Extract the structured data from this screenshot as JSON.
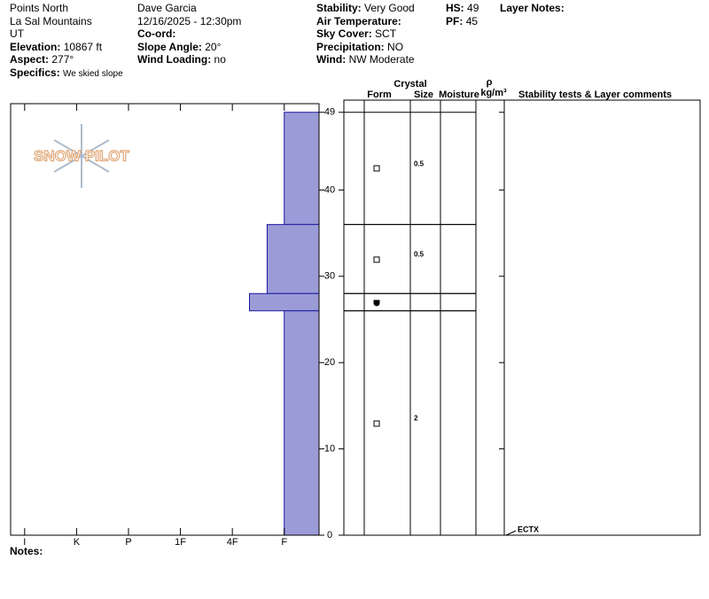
{
  "header": {
    "columns": [
      [
        {
          "value": "Points North"
        },
        {
          "value": "La Sal Mountains"
        },
        {
          "value": "UT"
        },
        {
          "label": "Elevation:",
          "value": "10867 ft"
        },
        {
          "label": "Aspect:",
          "value": "277°"
        },
        {
          "label": "Specifics:",
          "value": "We skied slope"
        }
      ],
      [
        {
          "value": "Dave Garcia"
        },
        {
          "value": "12/16/2025 - 12:30pm"
        },
        {
          "label": "Co-ord:"
        },
        {
          "label": "Slope Angle:",
          "value": "20°"
        },
        {
          "label": "Wind Loading:",
          "value": "no"
        }
      ],
      [
        {
          "label": "Stability:",
          "value": "Very Good"
        },
        {
          "label": "Air Temperature:"
        },
        {
          "label": "Sky Cover:",
          "value": "SCT"
        },
        {
          "label": "Precipitation:",
          "value": "NO"
        },
        {
          "label": "Wind:",
          "value": "NW Moderate"
        }
      ],
      [
        {
          "label": "HS:",
          "value": "49"
        },
        {
          "label": "PF:",
          "value": "45"
        }
      ],
      [
        {
          "label": "Layer Notes:"
        }
      ]
    ]
  },
  "logo": "SNOW PILOT",
  "notes_label": "Notes:",
  "columns": {
    "crystal": "Crystal",
    "form": "Form",
    "size": "Size",
    "moisture": "Moisture",
    "rho": "ρ",
    "density_unit": "kg/m³",
    "stability": "Stability tests & Layer comments"
  },
  "profile": {
    "ylim": [
      0,
      50
    ],
    "yticks": [
      0,
      10,
      20,
      30,
      40,
      49
    ],
    "xlim": [
      6.27,
      0.33
    ],
    "xticks": [
      {
        "value": 6,
        "label": "I"
      },
      {
        "value": 5,
        "label": "K"
      },
      {
        "value": 4,
        "label": "P"
      },
      {
        "value": 3,
        "label": "1F"
      },
      {
        "value": 2,
        "label": "4F"
      },
      {
        "value": 1,
        "label": "F"
      }
    ],
    "color": "#9b9bd8"
  },
  "layers": [
    {
      "top": 49,
      "bottom": 36,
      "hardness": 1,
      "size": 0.5
    },
    {
      "top": 36,
      "bottom": 28,
      "hardness": 1.33,
      "size": 0.5
    },
    {
      "top": 28,
      "bottom": 26,
      "hardness": 1.67
    },
    {
      "top": 26,
      "bottom": 0,
      "hardness": 1,
      "size": 2
    }
  ],
  "tests": [
    {
      "label": "ECTX",
      "height": 0
    }
  ]
}
